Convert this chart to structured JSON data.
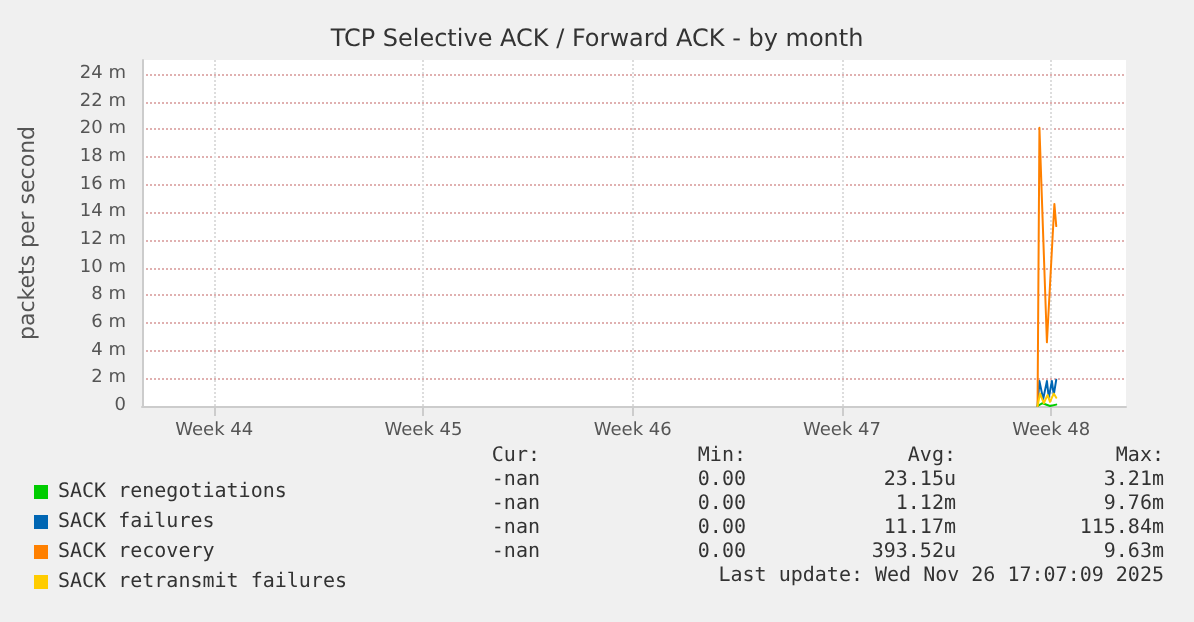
{
  "chart_data": {
    "type": "line",
    "title": "TCP Selective ACK / Forward ACK - by month",
    "ylabel": "packets per second",
    "xlim": [
      "2025-10-24T14:00",
      "2025-11-26T12:00"
    ],
    "xticks": [
      {
        "value": "2025-10-27",
        "label": "Week 44"
      },
      {
        "value": "2025-11-03",
        "label": "Week 45"
      },
      {
        "value": "2025-11-10",
        "label": "Week 46"
      },
      {
        "value": "2025-11-17",
        "label": "Week 47"
      },
      {
        "value": "2025-11-24",
        "label": "Week 48"
      }
    ],
    "ylim": [
      0,
      25
    ],
    "yticks": [
      {
        "value": 0,
        "label": "0"
      },
      {
        "value": 2,
        "label": "2 m"
      },
      {
        "value": 4,
        "label": "4 m"
      },
      {
        "value": 6,
        "label": "6 m"
      },
      {
        "value": 8,
        "label": "8 m"
      },
      {
        "value": 10,
        "label": "10 m"
      },
      {
        "value": 12,
        "label": "12 m"
      },
      {
        "value": 14,
        "label": "14 m"
      },
      {
        "value": 16,
        "label": "16 m"
      },
      {
        "value": 18,
        "label": "18 m"
      },
      {
        "value": 20,
        "label": "20 m"
      },
      {
        "value": 22,
        "label": "22 m"
      },
      {
        "value": 24,
        "label": "24 m"
      }
    ],
    "grid": true,
    "legend": "bottom",
    "marker": "none",
    "line_style": "solid",
    "series": [
      {
        "name": "SACK renegotiations",
        "color": "#00cc00",
        "x": [
          "2025-11-23T13:00",
          "2025-11-23T17:00",
          "2025-11-23T23:00",
          "2025-11-24T04:00"
        ],
        "values": [
          0,
          0.2,
          0,
          0.1
        ]
      },
      {
        "name": "SACK failures",
        "color": "#0066b3",
        "x": [
          "2025-11-23T13:00",
          "2025-11-23T14:30",
          "2025-11-23T17:30",
          "2025-11-23T20:30",
          "2025-11-23T22:00",
          "2025-11-24T00:30",
          "2025-11-24T02:00",
          "2025-11-24T04:00"
        ],
        "values": [
          0,
          1.8,
          0.5,
          1.8,
          0.6,
          1.8,
          0.8,
          1.9
        ]
      },
      {
        "name": "SACK recovery",
        "color": "#ff8000",
        "x": [
          "2025-11-23T13:00",
          "2025-11-23T14:30",
          "2025-11-23T20:30",
          "2025-11-24T02:30",
          "2025-11-24T04:00"
        ],
        "values": [
          0,
          20.1,
          4.6,
          14.6,
          13
        ]
      },
      {
        "name": "SACK retransmit failures",
        "color": "#ffcc00",
        "x": [
          "2025-11-23T13:00",
          "2025-11-23T15:00",
          "2025-11-23T18:00",
          "2025-11-23T21:00",
          "2025-11-23T23:00",
          "2025-11-24T02:00",
          "2025-11-24T04:00"
        ],
        "values": [
          0,
          0.9,
          0.2,
          0.8,
          0.3,
          0.9,
          0.6
        ]
      }
    ],
    "annotations": [
      "Cur:",
      "Min:",
      "Avg:",
      "Max:",
      "-nan",
      "0.00",
      "23.15u",
      "3.21m",
      "-nan",
      "0.00",
      "1.12m",
      "9.76m",
      "-nan",
      "0.00",
      "11.17m",
      "115.84m",
      "-nan",
      "0.00",
      "393.52u",
      "9.63m",
      "Last update: Wed Nov 26 17:07:09 2025"
    ]
  }
}
